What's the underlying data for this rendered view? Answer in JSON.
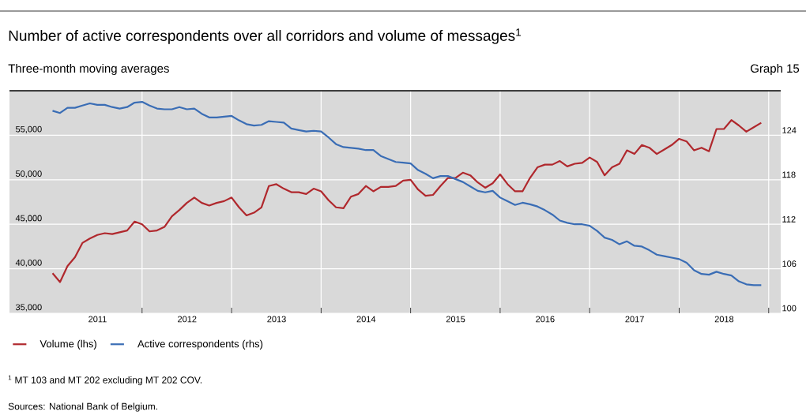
{
  "chart_data": {
    "type": "line",
    "title": "Number of active correspondents over all corridors and volume of messages$^{1}$",
    "subtitle": "Three-month moving averages",
    "annotations": [
      "Graph 15",
      "$^{1}$ MT 103 and MT 202 excluding MT 202 COV.",
      "Sources: National Bank of Belgium."
    ],
    "x": [
      "2011-01",
      "2011-02",
      "2011-03",
      "2011-04",
      "2011-05",
      "2011-06",
      "2011-07",
      "2011-08",
      "2011-09",
      "2011-10",
      "2011-11",
      "2011-12",
      "2012-01",
      "2012-02",
      "2012-03",
      "2012-04",
      "2012-05",
      "2012-06",
      "2012-07",
      "2012-08",
      "2012-09",
      "2012-10",
      "2012-11",
      "2012-12",
      "2013-01",
      "2013-02",
      "2013-03",
      "2013-04",
      "2013-05",
      "2013-06",
      "2013-07",
      "2013-08",
      "2013-09",
      "2013-10",
      "2013-11",
      "2013-12",
      "2014-01",
      "2014-02",
      "2014-03",
      "2014-04",
      "2014-05",
      "2014-06",
      "2014-07",
      "2014-08",
      "2014-09",
      "2014-10",
      "2014-11",
      "2014-12",
      "2015-01",
      "2015-02",
      "2015-03",
      "2015-04",
      "2015-05",
      "2015-06",
      "2015-07",
      "2015-08",
      "2015-09",
      "2015-10",
      "2015-11",
      "2015-12",
      "2016-01",
      "2016-02",
      "2016-03",
      "2016-04",
      "2016-05",
      "2016-06",
      "2016-07",
      "2016-08",
      "2016-09",
      "2016-10",
      "2016-11",
      "2016-12",
      "2017-01",
      "2017-02",
      "2017-03",
      "2017-04",
      "2017-05",
      "2017-06",
      "2017-07",
      "2017-08",
      "2017-09",
      "2017-10",
      "2017-11",
      "2017-12",
      "2018-01",
      "2018-02",
      "2018-03",
      "2018-04",
      "2018-05",
      "2018-06",
      "2018-07",
      "2018-08",
      "2018-09",
      "2018-10",
      "2018-11",
      "2018-12"
    ],
    "series": [
      {
        "name": "Volume (lhs)",
        "color": "#b0282d",
        "values": [
          39500,
          38500,
          40300,
          41300,
          42900,
          43400,
          43800,
          44000,
          43900,
          44100,
          44300,
          45300,
          45000,
          44200,
          44300,
          44700,
          45900,
          46600,
          47400,
          48000,
          47400,
          47100,
          47400,
          47600,
          48000,
          46900,
          46000,
          46300,
          46900,
          49300,
          49500,
          49000,
          48600,
          48600,
          48400,
          49000,
          48700,
          47700,
          46900,
          46800,
          48100,
          48400,
          49300,
          48700,
          49200,
          49200,
          49300,
          49900,
          50000,
          48900,
          48200,
          48300,
          49300,
          50200,
          50200,
          50800,
          50500,
          49700,
          49100,
          49600,
          50600,
          49500,
          48700,
          48700,
          50200,
          51400,
          51700,
          51700,
          52100,
          51500,
          51800,
          51900,
          52500,
          52000,
          50500,
          51400,
          51800,
          53300,
          52900,
          53900,
          53600,
          52900,
          53400,
          53900,
          54600,
          54300,
          53300,
          53600,
          53200,
          55700,
          55700,
          56700,
          56100,
          55400,
          55900,
          56400
        ]
      },
      {
        "name": "Active correspondents (rhs)",
        "color": "#3a6db5",
        "axis": "y2",
        "values": [
          127.3,
          127.0,
          127.7,
          127.7,
          128.0,
          128.3,
          128.1,
          128.1,
          127.8,
          127.6,
          127.8,
          128.4,
          128.5,
          128.0,
          127.6,
          127.5,
          127.5,
          127.8,
          127.5,
          127.6,
          126.9,
          126.4,
          126.4,
          126.5,
          126.6,
          126.0,
          125.5,
          125.3,
          125.4,
          125.9,
          125.8,
          125.7,
          124.9,
          124.7,
          124.5,
          124.6,
          124.5,
          123.7,
          122.8,
          122.4,
          122.3,
          122.2,
          122.0,
          122.0,
          121.2,
          120.8,
          120.4,
          120.3,
          120.2,
          119.3,
          118.8,
          118.2,
          118.5,
          118.5,
          118.1,
          117.7,
          117.1,
          116.5,
          116.3,
          116.5,
          115.6,
          115.1,
          114.6,
          114.9,
          114.7,
          114.4,
          113.9,
          113.3,
          112.5,
          112.2,
          112.0,
          112.0,
          111.8,
          111.1,
          110.2,
          109.9,
          109.3,
          109.7,
          109.1,
          109.0,
          108.5,
          107.9,
          107.7,
          107.5,
          107.3,
          106.8,
          105.8,
          105.3,
          105.2,
          105.6,
          105.3,
          105.1,
          104.3,
          103.9,
          103.8,
          103.8
        ]
      }
    ],
    "xlim": [
      "2010-07-08",
      "2019-02-20"
    ],
    "xticks": [
      {
        "value": "2011-07-02",
        "label": "2011"
      },
      {
        "value": "2012-07-02",
        "label": "2012"
      },
      {
        "value": "2013-07-02",
        "label": "2013"
      },
      {
        "value": "2014-07-02",
        "label": "2014"
      },
      {
        "value": "2015-07-02",
        "label": "2015"
      },
      {
        "value": "2016-07-02",
        "label": "2016"
      },
      {
        "value": "2017-07-02",
        "label": "2017"
      },
      {
        "value": "2018-07-02",
        "label": "2018"
      },
      {
        "value": "2012-01-01",
        "label": null
      },
      {
        "value": "2013-01-01",
        "label": null
      },
      {
        "value": "2014-01-01",
        "label": null
      },
      {
        "value": "2015-01-01",
        "label": null
      },
      {
        "value": "2016-01-01",
        "label": null
      },
      {
        "value": "2017-01-01",
        "label": null
      },
      {
        "value": "2018-01-01",
        "label": null
      },
      {
        "value": "2019-01-01",
        "label": null
      }
    ],
    "ylim": [
      35000,
      60000
    ],
    "yticks": [
      {
        "value": 35000,
        "label": "35,000"
      },
      {
        "value": 40000,
        "label": "40,000"
      },
      {
        "value": 45000,
        "label": "45,000"
      },
      {
        "value": 50000,
        "label": "50,000"
      },
      {
        "value": 55000,
        "label": "55,000"
      }
    ],
    "y2lim": [
      100,
      130
    ],
    "y2ticks": [
      100,
      106,
      112,
      118,
      124
    ],
    "grid": true,
    "legend": "bottom left"
  }
}
